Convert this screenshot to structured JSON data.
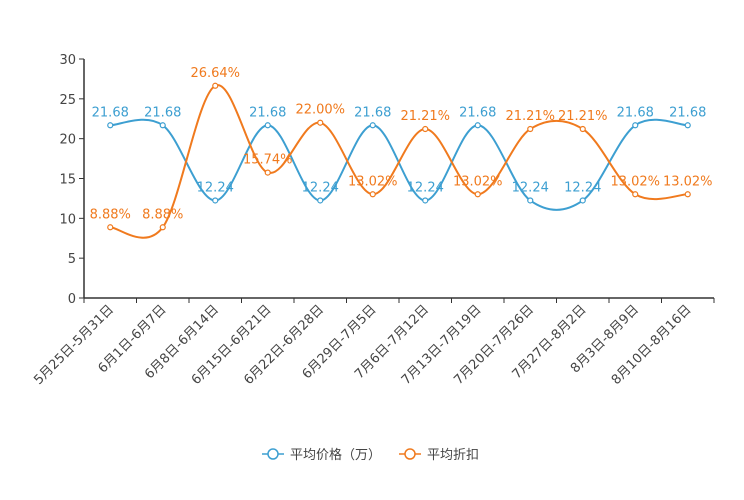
{
  "chart_data": {
    "type": "line",
    "categories": [
      "5月25日-5月31日",
      "6月1日-6月7日",
      "6月8日-6月14日",
      "6月15日-6月21日",
      "6月22日-6月28日",
      "6月29日-7月5日",
      "7月6日-7月12日",
      "7月13日-7月19日",
      "7月20日-7月26日",
      "7月27日-8月2日",
      "8月3日-8月9日",
      "8月10日-8月16日"
    ],
    "ylim": [
      0,
      30
    ],
    "yticks": [
      0,
      5,
      10,
      15,
      20,
      25,
      30
    ],
    "series": [
      {
        "name": "平均价格（万）",
        "color": "#3d9fd1",
        "values": [
          21.68,
          21.68,
          12.24,
          21.68,
          12.24,
          21.68,
          12.24,
          21.68,
          12.24,
          12.24,
          21.68,
          21.68
        ],
        "labels": [
          "21.68",
          "21.68",
          "12.24",
          "21.68",
          "12.24",
          "21.68",
          "12.24",
          "21.68",
          "12.24",
          "12.24",
          "21.68",
          "21.68"
        ]
      },
      {
        "name": "平均折扣",
        "color": "#f07a1e",
        "values": [
          8.88,
          8.88,
          26.64,
          15.74,
          22.0,
          13.02,
          21.21,
          13.02,
          21.21,
          21.21,
          13.02,
          13.02
        ],
        "labels": [
          "8.88%",
          "8.88%",
          "26.64%",
          "15.74%",
          "22.00%",
          "13.02%",
          "21.21%",
          "13.02%",
          "21.21%",
          "21.21%",
          "13.02%",
          "13.02%"
        ]
      }
    ],
    "legend_position": "bottom-center",
    "grid": false
  }
}
